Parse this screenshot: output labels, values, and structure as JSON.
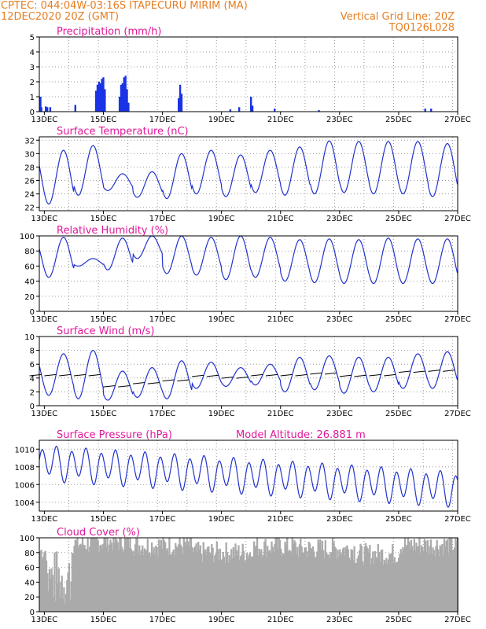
{
  "header": {
    "line1_left": "CPTEC:   044:04W-03:16S   ITAPECURU MIRIM (MA)",
    "line2_left": "12DEC2020 20Z (GMT)",
    "line2_right": "Vertical Grid Line: 20Z",
    "line3_right": "TQ0126L028"
  },
  "x_tick_labels": [
    "13DEC",
    "15DEC",
    "17DEC",
    "19DEC",
    "21DEC",
    "23DEC",
    "25DEC",
    "27DEC"
  ],
  "chart_data": [
    {
      "type": "bar",
      "title": "Precipitation (mm/h)",
      "ylim": [
        0,
        5
      ],
      "yticks": [
        0,
        1,
        2,
        3,
        4,
        5
      ],
      "x_range_days": [
        12.83,
        27.0
      ],
      "bars": [
        {
          "x": 12.87,
          "y": 1.0
        },
        {
          "x": 12.9,
          "y": 0.3
        },
        {
          "x": 13.05,
          "y": 0.35
        },
        {
          "x": 13.1,
          "y": 0.3
        },
        {
          "x": 13.2,
          "y": 0.3
        },
        {
          "x": 14.05,
          "y": 0.45
        },
        {
          "x": 14.75,
          "y": 1.4
        },
        {
          "x": 14.8,
          "y": 1.8
        },
        {
          "x": 14.85,
          "y": 2.0
        },
        {
          "x": 14.9,
          "y": 1.9
        },
        {
          "x": 14.95,
          "y": 2.2
        },
        {
          "x": 15.0,
          "y": 2.3
        },
        {
          "x": 15.05,
          "y": 1.5
        },
        {
          "x": 15.55,
          "y": 1.0
        },
        {
          "x": 15.6,
          "y": 1.8
        },
        {
          "x": 15.65,
          "y": 1.9
        },
        {
          "x": 15.7,
          "y": 2.3
        },
        {
          "x": 15.75,
          "y": 2.4
        },
        {
          "x": 15.8,
          "y": 1.5
        },
        {
          "x": 15.85,
          "y": 0.6
        },
        {
          "x": 17.55,
          "y": 0.9
        },
        {
          "x": 17.6,
          "y": 1.8
        },
        {
          "x": 17.65,
          "y": 1.2
        },
        {
          "x": 19.3,
          "y": 0.15
        },
        {
          "x": 19.6,
          "y": 0.3
        },
        {
          "x": 20.0,
          "y": 1.0
        },
        {
          "x": 20.05,
          "y": 0.4
        },
        {
          "x": 20.8,
          "y": 0.2
        },
        {
          "x": 22.3,
          "y": 0.1
        },
        {
          "x": 25.9,
          "y": 0.2
        },
        {
          "x": 26.1,
          "y": 0.2
        }
      ]
    },
    {
      "type": "line",
      "title": "Surface Temperature (nC)",
      "ylim": [
        21.5,
        32.5
      ],
      "yticks": [
        22,
        24,
        26,
        28,
        30,
        32
      ],
      "x_range_days": [
        12.83,
        27.0
      ],
      "diurnal": {
        "peak_hour_offset": 0.0,
        "maxs": [
          30.5,
          31.2,
          27.0,
          27.3,
          30.0,
          30.5,
          29.8,
          30.5,
          31.0,
          31.9,
          31.8,
          31.8,
          31.8,
          31.5,
          31.6
        ],
        "mins": [
          22.5,
          23.8,
          24.5,
          23.5,
          23.3,
          24.0,
          23.6,
          24.2,
          23.8,
          24.0,
          24.2,
          24.0,
          24.0,
          23.6,
          23.5
        ]
      }
    },
    {
      "type": "line",
      "title": "Relative Humidity (%)",
      "ylim": [
        0,
        100
      ],
      "yticks": [
        0,
        20,
        40,
        60,
        80,
        100
      ],
      "x_range_days": [
        12.83,
        27.0
      ],
      "diurnal": {
        "maxs": [
          98,
          70,
          97,
          100,
          100,
          98,
          100,
          98,
          95,
          96,
          95,
          97,
          96,
          96,
          95
        ],
        "mins": [
          45,
          60,
          55,
          70,
          50,
          48,
          42,
          45,
          40,
          38,
          37,
          37,
          37,
          37,
          38
        ]
      }
    },
    {
      "type": "line",
      "title": "Surface Wind (m/s)",
      "ylim": [
        0,
        10
      ],
      "yticks": [
        0,
        2,
        4,
        6,
        8,
        10
      ],
      "x_range_days": [
        12.83,
        27.0
      ],
      "diurnal": {
        "maxs": [
          7.5,
          8.0,
          5.0,
          5.5,
          6.5,
          6.3,
          5.5,
          6.0,
          7.0,
          7.2,
          7.0,
          7.0,
          7.5,
          7.8,
          8.0
        ],
        "mins": [
          1.5,
          1.0,
          0.8,
          1.2,
          1.0,
          2.5,
          2.8,
          3.0,
          2.0,
          2.3,
          1.8,
          2.0,
          2.5,
          2.5,
          2.5
        ]
      }
    },
    {
      "type": "line",
      "title": "Surface Pressure (hPa)",
      "subtitle": "Model Altitude: 26.881 m",
      "ylim": [
        1003.0,
        1011.0
      ],
      "yticks": [
        1004,
        1006,
        1008,
        1010
      ],
      "x_range_days": [
        12.83,
        27.0
      ],
      "semidiurnal": {
        "base_start": 1008.5,
        "base_end": 1005.5,
        "amplitude": 1.7
      }
    },
    {
      "type": "bar",
      "title": "Cloud Cover (%)",
      "ylim": [
        0,
        100
      ],
      "yticks": [
        0,
        20,
        40,
        60,
        80,
        100
      ],
      "x_range_days": [
        12.83,
        27.0
      ],
      "segments": [
        {
          "from": 12.83,
          "to": 13.05,
          "level": 82
        },
        {
          "from": 13.05,
          "to": 13.9,
          "level": 45
        },
        {
          "from": 13.9,
          "to": 14.5,
          "level": 92
        },
        {
          "from": 14.5,
          "to": 16.0,
          "level": 95
        },
        {
          "from": 16.0,
          "to": 18.0,
          "level": 90
        },
        {
          "from": 18.0,
          "to": 20.0,
          "level": 80
        },
        {
          "from": 20.0,
          "to": 21.5,
          "level": 88
        },
        {
          "from": 21.5,
          "to": 23.5,
          "level": 85
        },
        {
          "from": 23.5,
          "to": 25.0,
          "level": 78
        },
        {
          "from": 25.0,
          "to": 27.0,
          "level": 90
        }
      ]
    }
  ],
  "colors": {
    "line": "#2233cc",
    "bar": "#1a33e6",
    "cloud": "#aaaaaa",
    "title": "#e0189a",
    "header": "#e67e22"
  }
}
